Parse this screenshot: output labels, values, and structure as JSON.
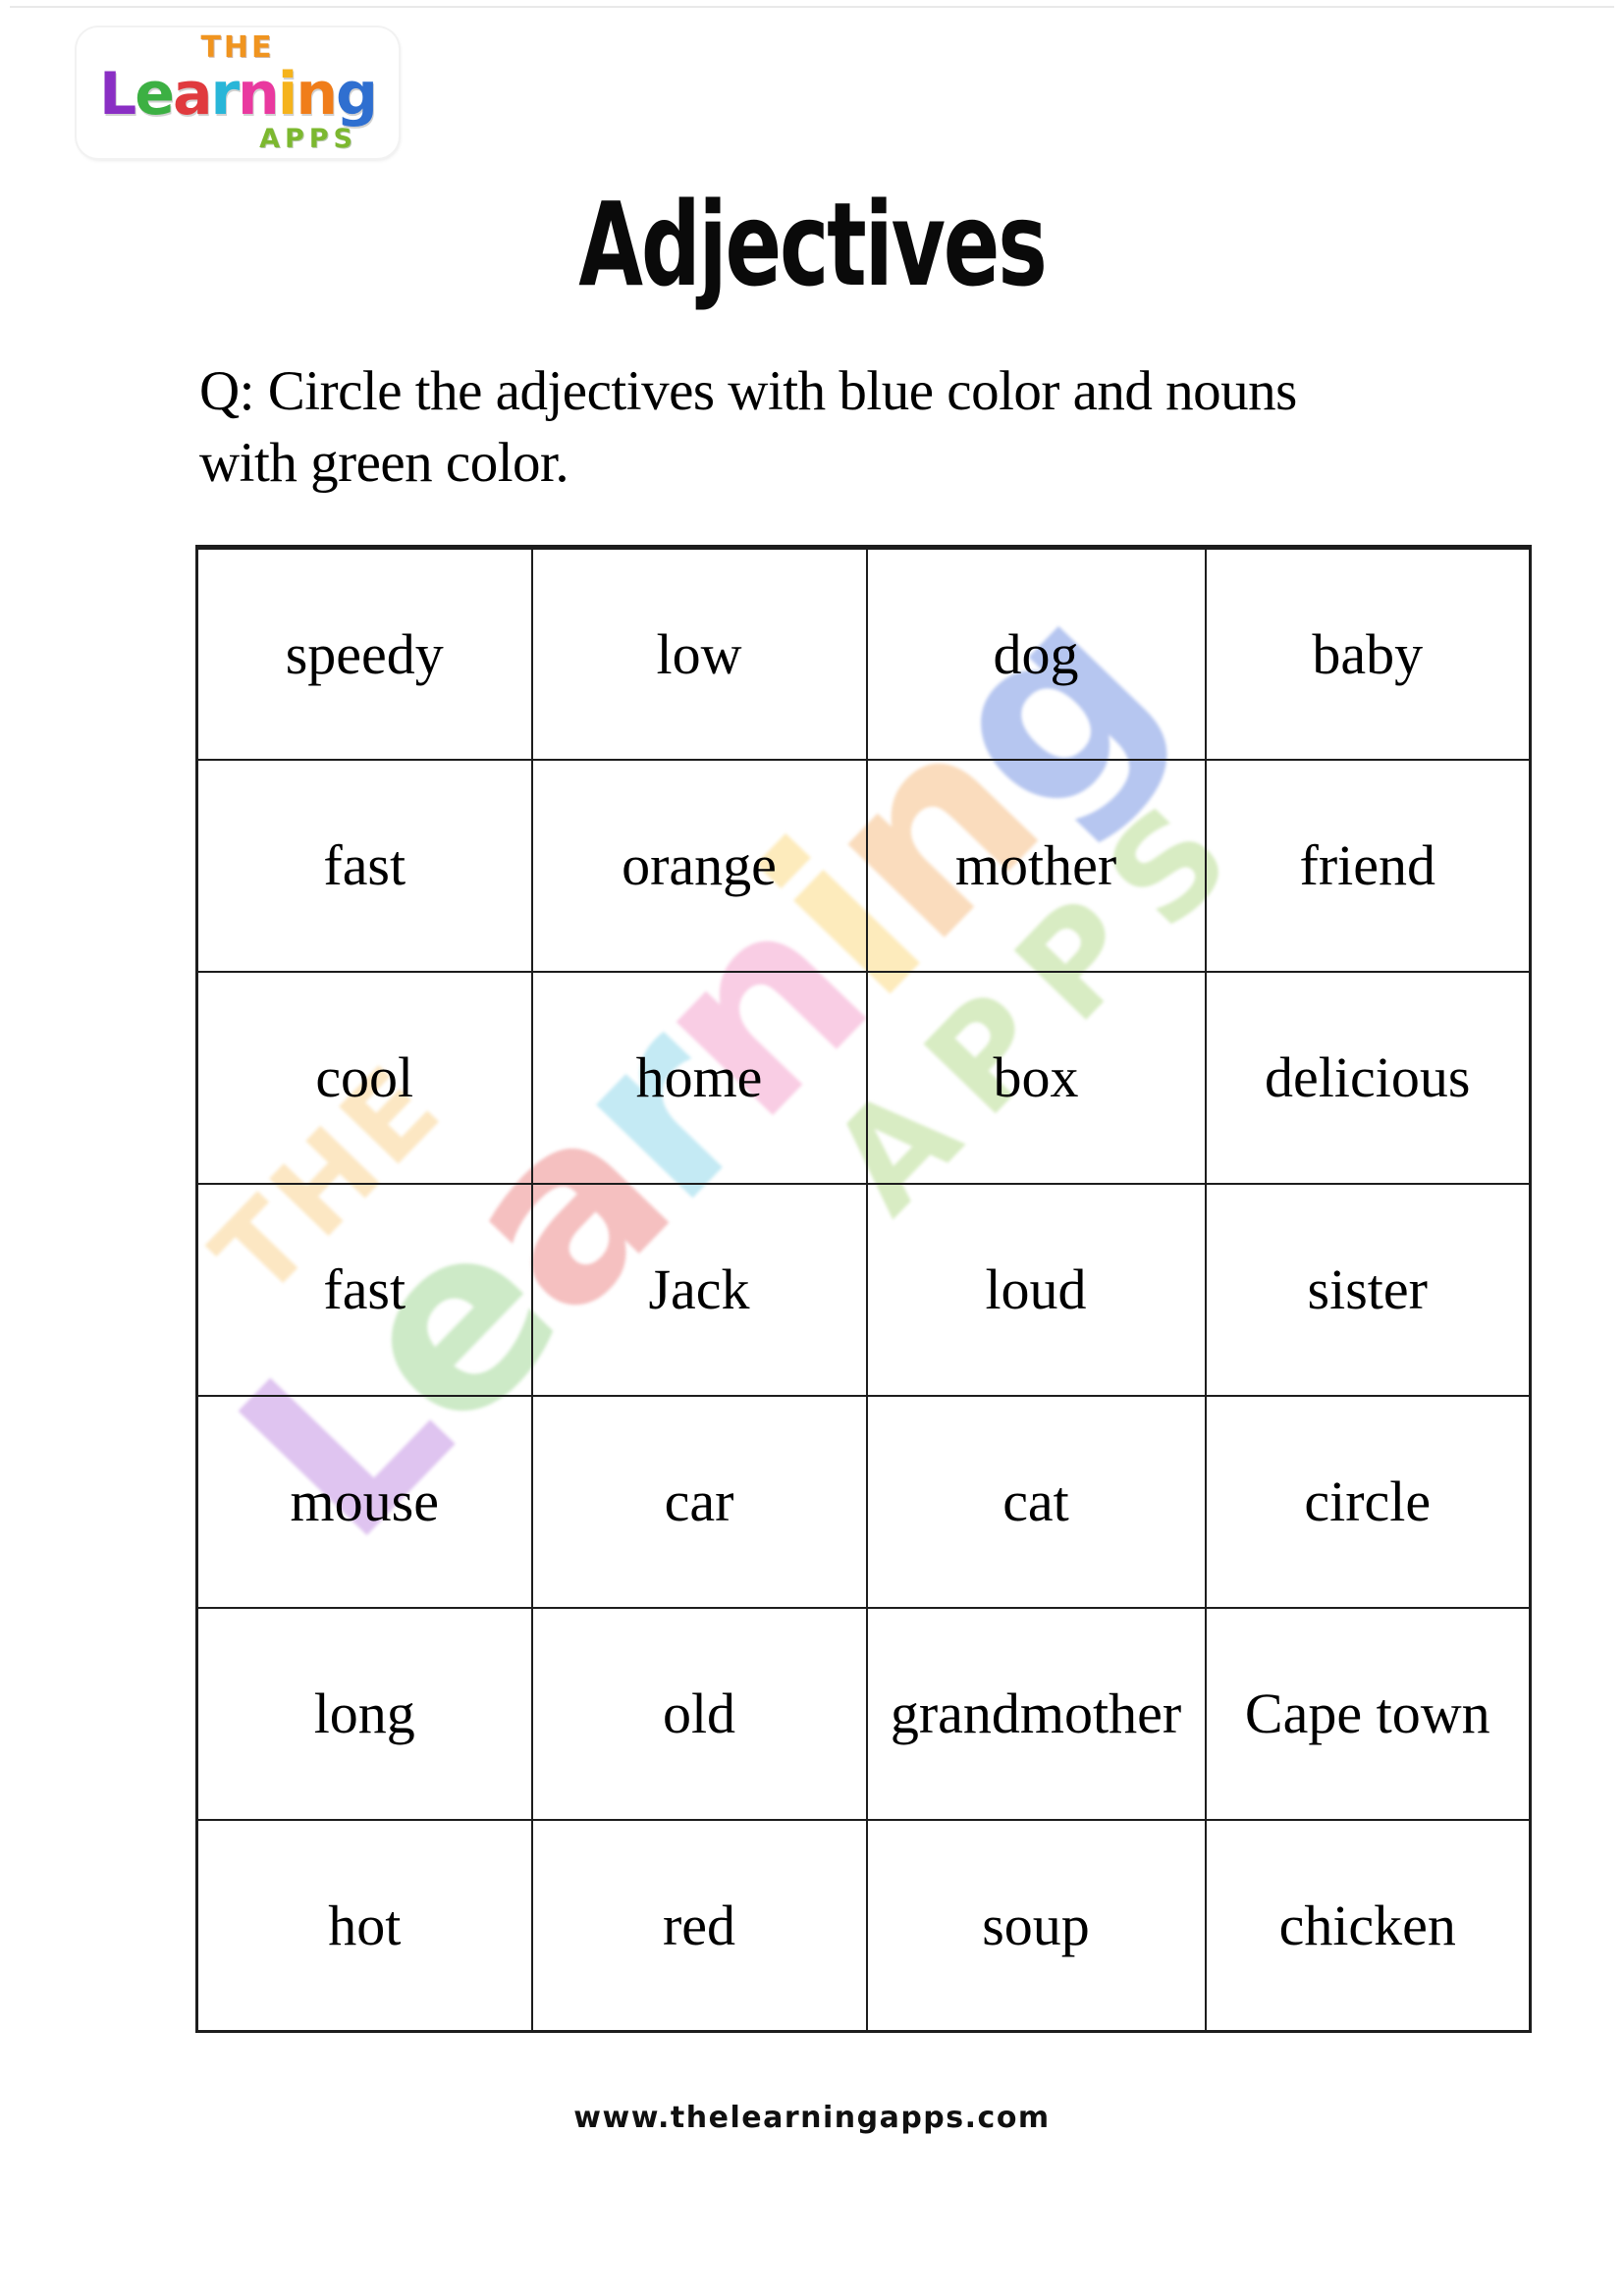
{
  "logo": {
    "the": "THE",
    "apps": "APPS",
    "the_color": "#f0941f",
    "apps_color": "#7cb82f",
    "learning_letters": [
      {
        "ch": "L",
        "color": "#8a2fc4"
      },
      {
        "ch": "e",
        "color": "#3cb043"
      },
      {
        "ch": "a",
        "color": "#e03a3e"
      },
      {
        "ch": "r",
        "color": "#29b6d8"
      },
      {
        "ch": "n",
        "color": "#e9399f"
      },
      {
        "ch": "i",
        "color": "#f5b31c"
      },
      {
        "ch": "n",
        "color": "#f07d1a"
      },
      {
        "ch": "g",
        "color": "#2f6fd0"
      }
    ]
  },
  "watermark": {
    "the": "THE",
    "apps": "APPS",
    "the_color": "rgba(245,170,40,0.28)",
    "apps_color": "rgba(140,200,80,0.34)",
    "learning_letters": [
      {
        "ch": "L",
        "color": "rgba(150,60,205,0.30)"
      },
      {
        "ch": "e",
        "color": "rgba(90,185,70,0.30)"
      },
      {
        "ch": "a",
        "color": "rgba(225,70,70,0.34)"
      },
      {
        "ch": "r",
        "color": "rgba(70,190,220,0.32)"
      },
      {
        "ch": "n",
        "color": "rgba(235,90,165,0.30)"
      },
      {
        "ch": "i",
        "color": "rgba(250,200,70,0.36)"
      },
      {
        "ch": "n",
        "color": "rgba(240,145,50,0.32)"
      },
      {
        "ch": "g",
        "color": "rgba(80,120,220,0.42)"
      }
    ]
  },
  "title": "Adjectives",
  "question": {
    "line1": "Q: Circle the adjectives with blue color and nouns",
    "line2": "with green color."
  },
  "table": {
    "rows": [
      [
        "speedy",
        "low",
        "dog",
        "baby"
      ],
      [
        "fast",
        "orange",
        "mother",
        "friend"
      ],
      [
        "cool",
        "home",
        "box",
        "delicious"
      ],
      [
        "fast",
        "Jack",
        "loud",
        "sister"
      ],
      [
        "mouse",
        "car",
        "cat",
        "circle"
      ],
      [
        "long",
        "old",
        "grandmother",
        "Cape town"
      ],
      [
        "hot",
        "red",
        "soup",
        "chicken"
      ]
    ]
  },
  "footer": {
    "url": "www.thelearningapps.com"
  }
}
